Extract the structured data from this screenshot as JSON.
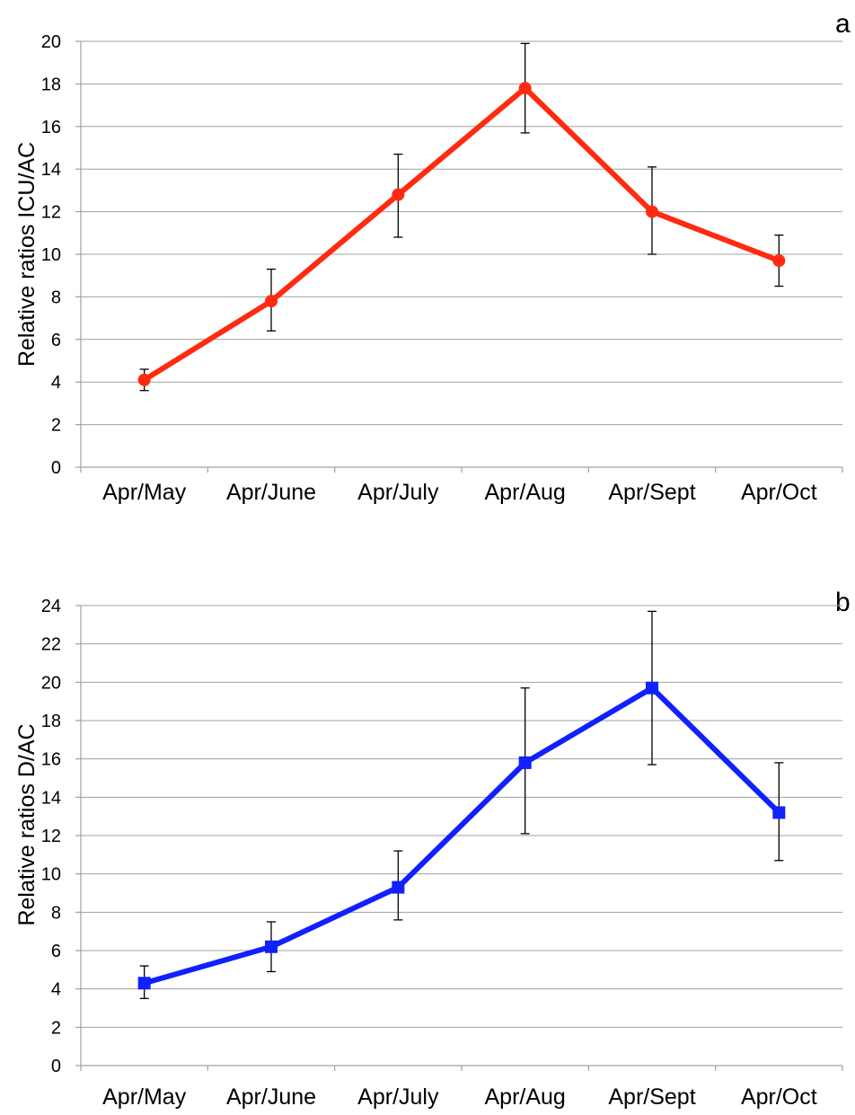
{
  "chart_data": [
    {
      "type": "line",
      "panel_label": "a",
      "ylabel": "Relative ratios ICU/AC",
      "xlabel": "",
      "categories": [
        "Apr/May",
        "Apr/June",
        "Apr/July",
        "Apr/Aug",
        "Apr/Sept",
        "Apr/Oct"
      ],
      "ylim": [
        0,
        20
      ],
      "yticks": [
        0,
        2,
        4,
        6,
        8,
        10,
        12,
        14,
        16,
        18,
        20
      ],
      "grid": true,
      "series": [
        {
          "values": [
            4.1,
            7.8,
            12.8,
            17.8,
            12.0,
            9.7
          ],
          "error_low": [
            3.6,
            6.4,
            10.8,
            15.7,
            10.0,
            8.5
          ],
          "error_high": [
            4.6,
            9.3,
            14.7,
            19.9,
            14.1,
            10.9
          ],
          "color": "#ff2a10",
          "marker": "circle"
        }
      ]
    },
    {
      "type": "line",
      "panel_label": "b",
      "ylabel": "Relative ratios D/AC",
      "xlabel": "",
      "categories": [
        "Apr/May",
        "Apr/June",
        "Apr/July",
        "Apr/Aug",
        "Apr/Sept",
        "Apr/Oct"
      ],
      "ylim": [
        0,
        24
      ],
      "yticks": [
        0,
        2,
        4,
        6,
        8,
        10,
        12,
        14,
        16,
        18,
        20,
        22,
        24
      ],
      "grid": true,
      "series": [
        {
          "values": [
            4.3,
            6.2,
            9.3,
            15.8,
            19.7,
            13.2
          ],
          "error_low": [
            3.5,
            4.9,
            7.6,
            12.1,
            15.7,
            10.7
          ],
          "error_high": [
            5.2,
            7.5,
            11.2,
            19.7,
            23.7,
            15.8
          ],
          "color": "#1020ff",
          "marker": "square"
        }
      ]
    }
  ]
}
